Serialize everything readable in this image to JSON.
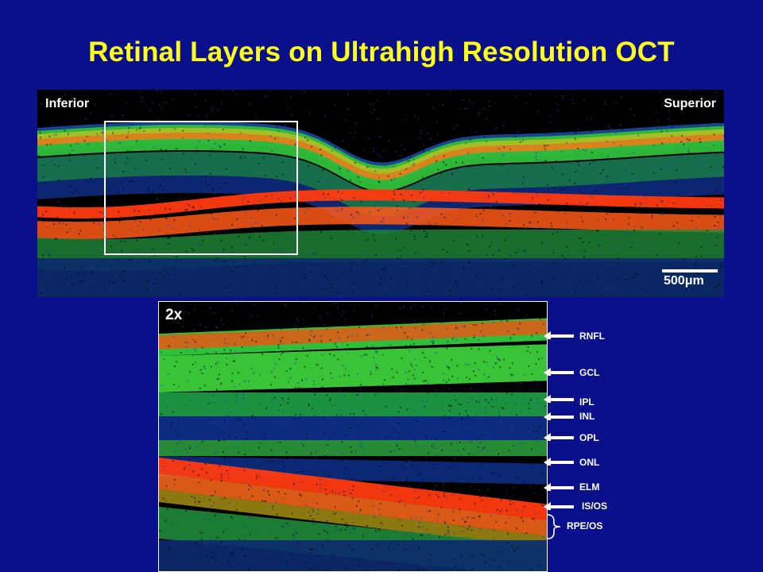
{
  "title": "Retinal Layers on Ultrahigh Resolution OCT",
  "top_scan": {
    "left_label": "Inferior",
    "right_label": "Superior",
    "scale_label": "500μm"
  },
  "zoom_scan": {
    "magnification": "2x"
  },
  "layers": [
    {
      "name": "RNFL"
    },
    {
      "name": "GCL"
    },
    {
      "name": "IPL"
    },
    {
      "name": "INL"
    },
    {
      "name": "OPL"
    },
    {
      "name": "ONL"
    },
    {
      "name": "ELM"
    },
    {
      "name": "IS/OS"
    },
    {
      "name": "RPE/OS"
    }
  ],
  "colors": {
    "background": "#0a0f8c",
    "title": "#ffff1a",
    "labels": "#ffffff",
    "oct_low": "#0a1a6e",
    "oct_mid": "#2fbf3a",
    "oct_high": "#ff3a10"
  }
}
